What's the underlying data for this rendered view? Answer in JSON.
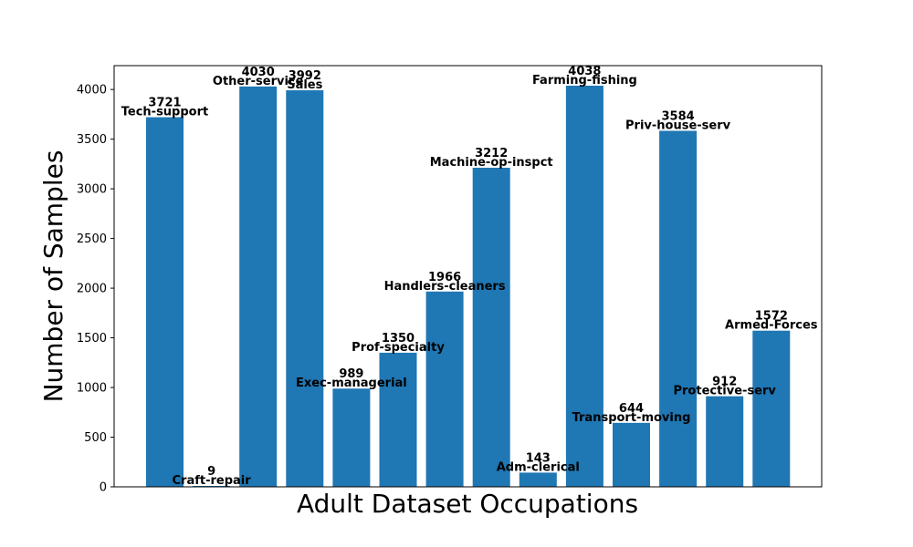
{
  "chart_data": {
    "type": "bar",
    "title": "",
    "xlabel": "Adult Dataset Occupations",
    "ylabel": "Number of Samples",
    "ylim": [
      0,
      4240
    ],
    "yticks": [
      0,
      500,
      1000,
      1500,
      2000,
      2500,
      3000,
      3500,
      4000
    ],
    "grid": false,
    "bar_color": "#1f77b4",
    "categories": [
      "Tech-support",
      "Craft-repair",
      "Other-service",
      "Sales",
      "Exec-managerial",
      "Prof-specialty",
      "Handlers-cleaners",
      "Machine-op-inspct",
      "Adm-clerical",
      "Farming-fishing",
      "Transport-moving",
      "Priv-house-serv",
      "Protective-serv",
      "Armed-Forces"
    ],
    "values": [
      3721,
      9,
      4030,
      3992,
      989,
      1350,
      1966,
      3212,
      143,
      4038,
      644,
      3584,
      912,
      1572
    ],
    "value_labels": [
      "3721",
      "9",
      "4030",
      "3992",
      "989",
      "1350",
      "1966",
      "3212",
      "143",
      "4038",
      "644",
      "3584",
      "912",
      "1572"
    ]
  }
}
